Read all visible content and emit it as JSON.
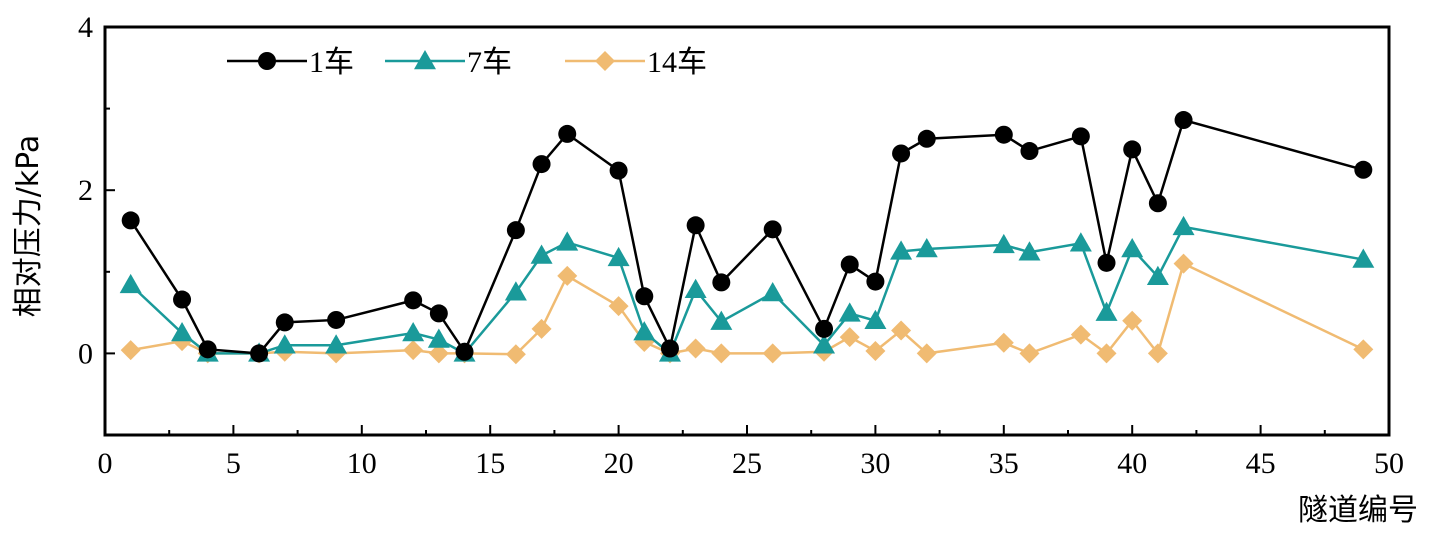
{
  "chart_data": {
    "type": "line",
    "xlabel": "隧道编号",
    "ylabel": "相对压力/kPa",
    "xlim": [
      0,
      50
    ],
    "ylim": [
      -1,
      4
    ],
    "xticks": [
      "0",
      "5",
      "10",
      "15",
      "20",
      "25",
      "30",
      "35",
      "40",
      "45",
      "50"
    ],
    "yticks": [
      "0",
      "2",
      "4"
    ],
    "legend_position": "top-left",
    "series": [
      {
        "name": "1车",
        "color": "#000000",
        "marker": "circle",
        "x": [
          1,
          3,
          4,
          6,
          7,
          9,
          12,
          13,
          14,
          16,
          17,
          18,
          20,
          21,
          22,
          23,
          24,
          26,
          28,
          29,
          30,
          31,
          32,
          35,
          36,
          38,
          39,
          40,
          41,
          42,
          49
        ],
        "y": [
          1.63,
          0.66,
          0.05,
          0.0,
          0.38,
          0.41,
          0.65,
          0.49,
          0.02,
          1.51,
          2.32,
          2.69,
          2.24,
          0.7,
          0.06,
          1.57,
          0.87,
          1.52,
          0.3,
          1.09,
          0.88,
          2.45,
          2.63,
          2.68,
          2.48,
          2.66,
          1.11,
          2.5,
          1.84,
          2.86,
          2.25
        ]
      },
      {
        "name": "7车",
        "color": "#1a9a9a",
        "marker": "triangle",
        "x": [
          1,
          3,
          4,
          6,
          7,
          9,
          12,
          13,
          14,
          16,
          17,
          18,
          20,
          21,
          22,
          23,
          24,
          26,
          28,
          29,
          30,
          31,
          32,
          35,
          36,
          38,
          39,
          40,
          41,
          42,
          49
        ],
        "y": [
          0.84,
          0.25,
          0.0,
          0.0,
          0.1,
          0.1,
          0.25,
          0.17,
          0.0,
          0.75,
          1.2,
          1.36,
          1.17,
          0.26,
          0.0,
          0.78,
          0.39,
          0.74,
          0.1,
          0.49,
          0.4,
          1.25,
          1.28,
          1.33,
          1.24,
          1.35,
          0.5,
          1.28,
          0.94,
          1.55,
          1.15
        ]
      },
      {
        "name": "14车",
        "color": "#f0bb72",
        "marker": "diamond",
        "x": [
          1,
          3,
          4,
          6,
          7,
          9,
          12,
          13,
          14,
          16,
          17,
          18,
          20,
          21,
          22,
          23,
          24,
          26,
          28,
          29,
          30,
          31,
          32,
          35,
          36,
          38,
          39,
          40,
          41,
          42,
          49
        ],
        "y": [
          0.04,
          0.15,
          0.0,
          0.0,
          0.02,
          0.0,
          0.04,
          0.0,
          0.0,
          -0.01,
          0.3,
          0.95,
          0.58,
          0.14,
          0.0,
          0.06,
          0.0,
          0.0,
          0.02,
          0.2,
          0.03,
          0.28,
          0.0,
          0.13,
          0.0,
          0.23,
          0.0,
          0.4,
          0.0,
          1.1,
          0.05
        ]
      }
    ]
  }
}
